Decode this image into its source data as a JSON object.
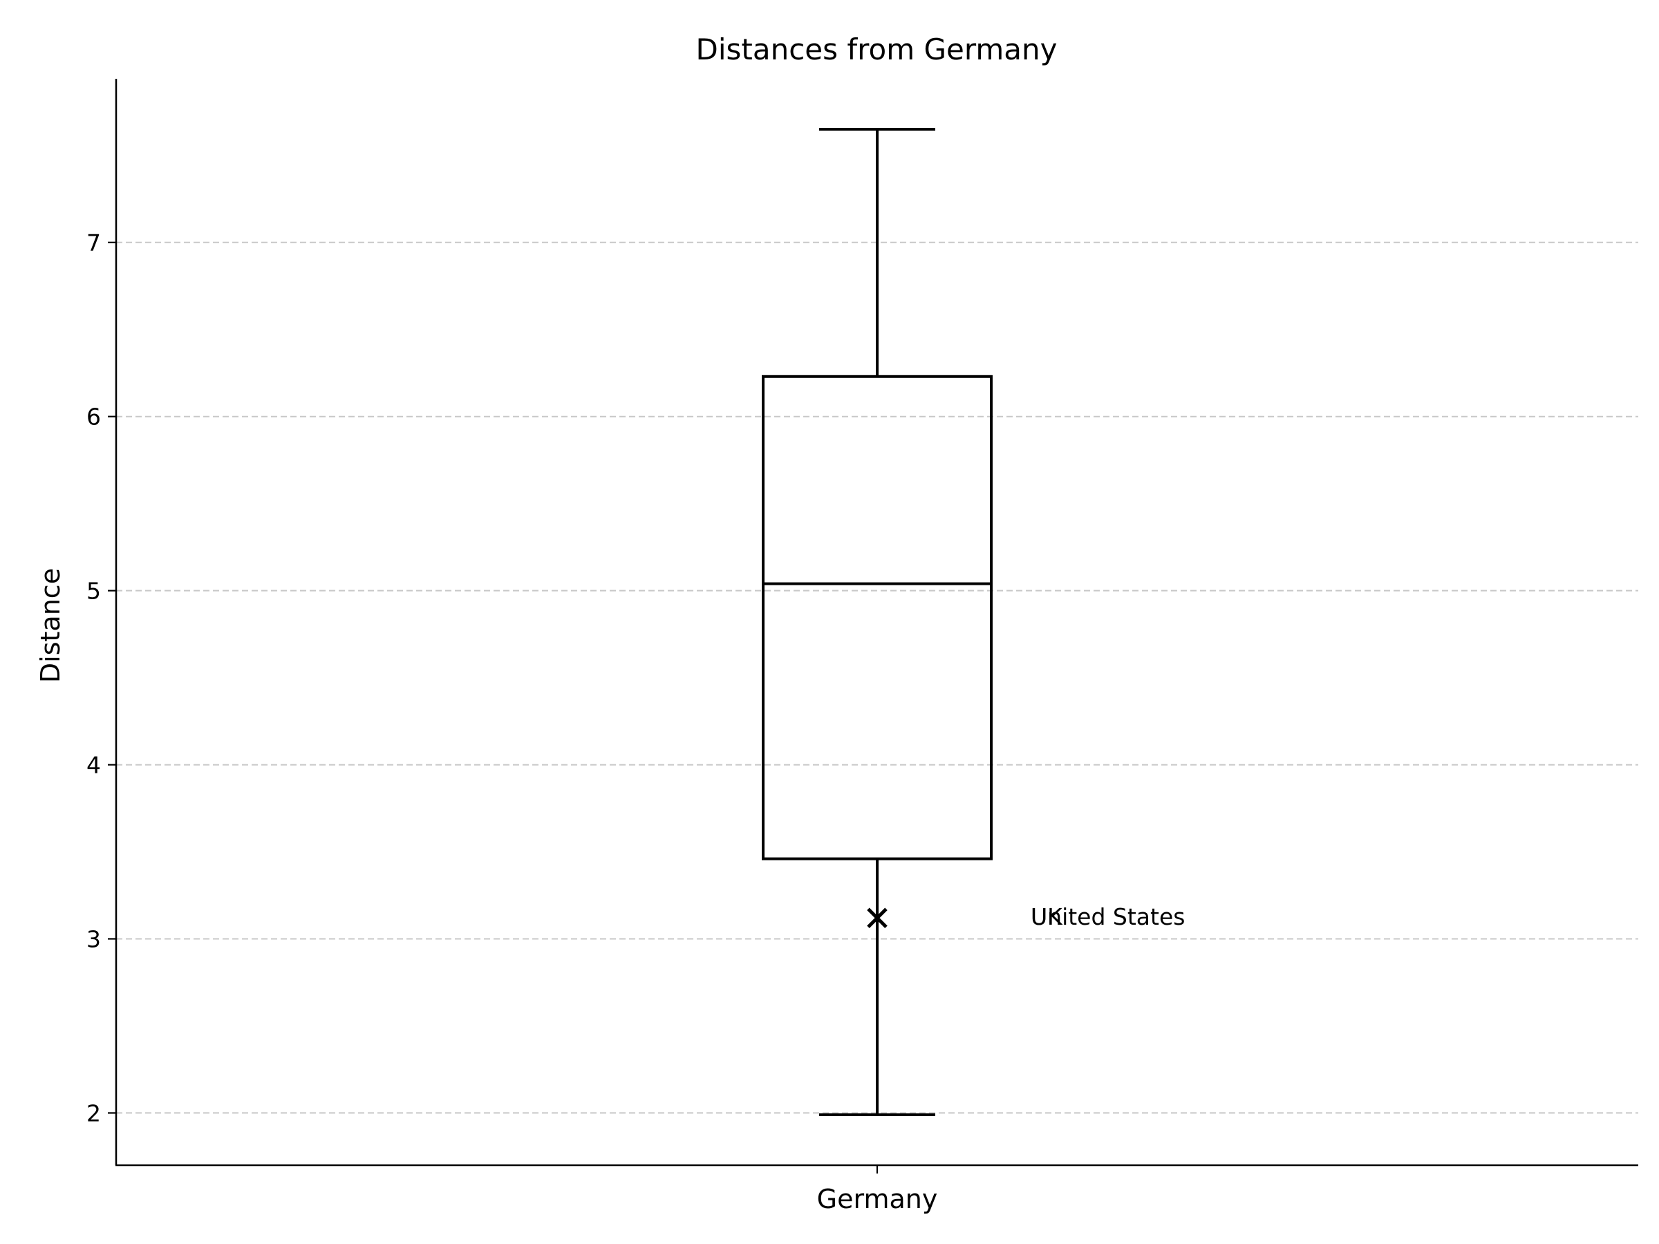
{
  "chart_data": {
    "type": "box",
    "title": "Distances from Germany",
    "xlabel": "",
    "ylabel": "Distance",
    "categories": [
      "Germany"
    ],
    "boxes": [
      {
        "category": "Germany",
        "whisker_low": 1.99,
        "q1": 3.46,
        "median": 5.04,
        "q3": 6.23,
        "whisker_high": 7.65
      }
    ],
    "points": [
      {
        "category": "Germany",
        "y": 3.12,
        "marker": "x"
      }
    ],
    "annotations": [
      {
        "text": "United States",
        "category": "Germany",
        "y": 3.13
      },
      {
        "text": "UK",
        "category": "Germany",
        "y": 3.13
      }
    ],
    "ylim": [
      1.7,
      7.94
    ],
    "yticks": [
      2,
      3,
      4,
      5,
      6,
      7
    ],
    "grid": {
      "y": true,
      "x": false,
      "style": "dashed"
    },
    "colors": {
      "box": "#000000",
      "grid": "#c8c8c8"
    }
  }
}
